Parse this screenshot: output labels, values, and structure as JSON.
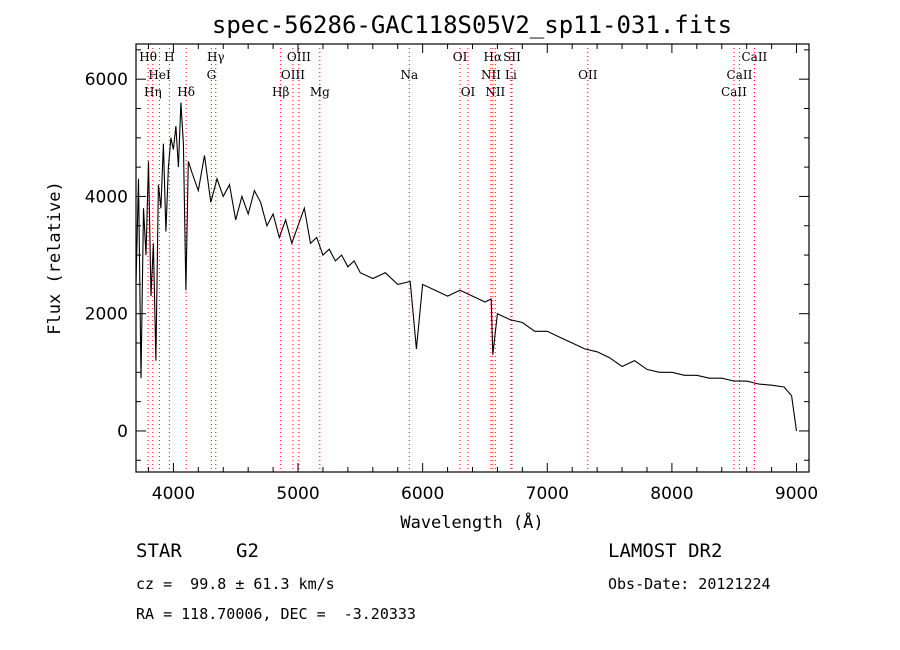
{
  "chart_data": {
    "type": "line",
    "title": "spec-56286-GAC118S05V2_sp11-031.fits",
    "xlabel": "Wavelength (Å)",
    "ylabel": "Flux (relative)",
    "xlim": [
      3700,
      9100
    ],
    "ylim": [
      -700,
      6600
    ],
    "x_ticks": [
      4000,
      5000,
      6000,
      7000,
      8000,
      9000
    ],
    "x_tick_labels": [
      "4000",
      "5000",
      "6000",
      "7000",
      "8000",
      "9000"
    ],
    "y_ticks": [
      0,
      2000,
      4000,
      6000
    ],
    "y_tick_labels": [
      "0",
      "2000",
      "4000",
      "6000"
    ],
    "grid": false,
    "series": [
      {
        "x": [
          3700,
          3720,
          3740,
          3760,
          3780,
          3800,
          3820,
          3840,
          3860,
          3880,
          3900,
          3920,
          3940,
          3960,
          3980,
          4000,
          4020,
          4040,
          4060,
          4080,
          4100,
          4120,
          4150,
          4200,
          4250,
          4300,
          4350,
          4400,
          4450,
          4500,
          4550,
          4600,
          4650,
          4700,
          4750,
          4800,
          4850,
          4900,
          4950,
          5000,
          5050,
          5100,
          5150,
          5200,
          5250,
          5300,
          5350,
          5400,
          5450,
          5500,
          5600,
          5700,
          5800,
          5900,
          5950,
          6000,
          6100,
          6200,
          6300,
          6400,
          6500,
          6550,
          6563,
          6600,
          6700,
          6800,
          6900,
          7000,
          7100,
          7200,
          7300,
          7400,
          7500,
          7600,
          7700,
          7800,
          7900,
          8000,
          8100,
          8200,
          8300,
          8400,
          8500,
          8600,
          8700,
          8800,
          8900,
          8960,
          9000
        ],
        "y": [
          2500,
          4300,
          900,
          3800,
          3000,
          4600,
          2300,
          3200,
          1200,
          4200,
          3800,
          4900,
          3400,
          4500,
          5000,
          4800,
          5200,
          4500,
          5600,
          4900,
          2400,
          4600,
          4400,
          4100,
          4700,
          3900,
          4300,
          4000,
          4200,
          3600,
          4000,
          3700,
          4100,
          3900,
          3500,
          3700,
          3300,
          3600,
          3200,
          3500,
          3800,
          3200,
          3300,
          3000,
          3100,
          2900,
          3000,
          2800,
          2900,
          2700,
          2600,
          2700,
          2500,
          2550,
          1400,
          2500,
          2400,
          2300,
          2400,
          2300,
          2200,
          2250,
          1300,
          2000,
          1900,
          1850,
          1700,
          1700,
          1600,
          1500,
          1400,
          1350,
          1250,
          1100,
          1200,
          1050,
          1000,
          1000,
          950,
          950,
          900,
          900,
          850,
          850,
          800,
          780,
          750,
          600,
          0
        ]
      }
    ],
    "lines": [
      {
        "label": "Hθ",
        "x": 3797,
        "row": 1
      },
      {
        "label": "Hη",
        "x": 3835,
        "row": 3
      },
      {
        "label": "HeI",
        "x": 3889,
        "row": 2
      },
      {
        "label": "H",
        "x": 3968,
        "row": 1
      },
      {
        "label": "Hδ",
        "x": 4102,
        "row": 3
      },
      {
        "label": "Hγ",
        "x": 4340,
        "row": 1
      },
      {
        "label": "G",
        "x": 4305,
        "row": 2
      },
      {
        "label": "Hβ",
        "x": 4861,
        "row": 3
      },
      {
        "label": "OIII",
        "x": 4959,
        "row": 2
      },
      {
        "label": "OIII",
        "x": 5007,
        "row": 1
      },
      {
        "label": "Mg",
        "x": 5175,
        "row": 3
      },
      {
        "label": "Na",
        "x": 5893,
        "row": 2
      },
      {
        "label": "OI",
        "x": 6300,
        "row": 1
      },
      {
        "label": "OI",
        "x": 6364,
        "row": 3
      },
      {
        "label": "NII",
        "x": 6548,
        "row": 2
      },
      {
        "label": "Hα",
        "x": 6563,
        "row": 1
      },
      {
        "label": "NII",
        "x": 6583,
        "row": 3
      },
      {
        "label": "SII",
        "x": 6717,
        "row": 1
      },
      {
        "label": "Li",
        "x": 6708,
        "row": 2
      },
      {
        "label": "OII",
        "x": 7325,
        "row": 2
      },
      {
        "label": "CaII",
        "x": 8498,
        "row": 3
      },
      {
        "label": "CaII",
        "x": 8542,
        "row": 2
      },
      {
        "label": "CaII",
        "x": 8662,
        "row": 1
      }
    ],
    "colors": {
      "spectrum": "#000000",
      "marker_lines": "#ff0000",
      "axes": "#000000"
    }
  },
  "info": {
    "object_type": "STAR",
    "subclass": "G2",
    "survey": "LAMOST DR2",
    "redshift": "cz =  99.8 ± 61.3 km/s",
    "obs_date": "Obs-Date: 20121224",
    "coords": "RA = 118.70006, DEC =  -3.20333"
  }
}
